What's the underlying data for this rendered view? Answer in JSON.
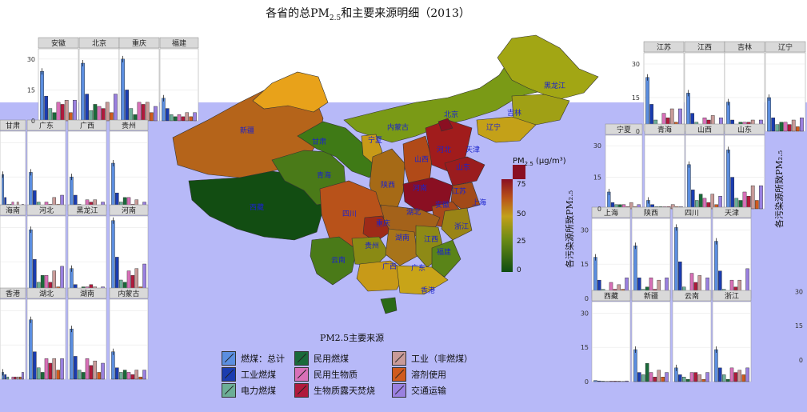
{
  "title": {
    "main": "各省的总PM",
    "sub": "2.5",
    "rest": "和主要来源明细（2013）"
  },
  "legend": {
    "title": "PM2.5主要来源",
    "items": [
      {
        "label": "燃煤：总计",
        "color": "#5b8ee0"
      },
      {
        "label": "工业燃煤",
        "color": "#1a3cb0"
      },
      {
        "label": "电力燃煤",
        "color": "#6cae96"
      },
      {
        "label": "民用燃煤",
        "color": "#1a6a3a"
      },
      {
        "label": "民用生物质",
        "color": "#d870b8"
      },
      {
        "label": "生物质露天焚烧",
        "color": "#b01a3c"
      },
      {
        "label": "工业（非燃煤）",
        "color": "#c89a98"
      },
      {
        "label": "溶剂使用",
        "color": "#d05a1e"
      },
      {
        "label": "交通运输",
        "color": "#9a80e0"
      }
    ]
  },
  "pm_legend": {
    "title": "PM",
    "sub": "2.5",
    "unit": "(μg/m³)",
    "ticks": [
      "75",
      "50",
      "25",
      "0"
    ]
  },
  "ylabel_a": "各污染源所致PM₂.₅",
  "ylabel_b": "各污染源所致PM₂.₅",
  "map_labels": [
    {
      "name": "新疆"
    },
    {
      "name": "西藏"
    },
    {
      "name": "青海"
    },
    {
      "name": "甘肃"
    },
    {
      "name": "内蒙古"
    },
    {
      "name": "黑龙江"
    },
    {
      "name": "吉林"
    },
    {
      "name": "辽宁"
    },
    {
      "name": "北京"
    },
    {
      "name": "天津"
    },
    {
      "name": "河北"
    },
    {
      "name": "山西"
    },
    {
      "name": "山东"
    },
    {
      "name": "宁夏"
    },
    {
      "name": "陕西"
    },
    {
      "name": "河南"
    },
    {
      "name": "江苏"
    },
    {
      "name": "上海"
    },
    {
      "name": "安徽"
    },
    {
      "name": "湖北"
    },
    {
      "name": "四川"
    },
    {
      "name": "重庆"
    },
    {
      "name": "浙江"
    },
    {
      "name": "湖南"
    },
    {
      "name": "江西"
    },
    {
      "name": "贵州"
    },
    {
      "name": "云南"
    },
    {
      "name": "福建"
    },
    {
      "name": "广西"
    },
    {
      "name": "广东"
    },
    {
      "name": "香港"
    }
  ],
  "chart_data": {
    "type": "bar",
    "title": "各省的总PM2.5和主要来源明细（2013）",
    "ylabel": "各污染源所致PM2.5",
    "ylim": [
      0,
      35
    ],
    "yticks": [
      0,
      15,
      30
    ],
    "series_names": [
      "燃煤：总计",
      "工业燃煤",
      "电力燃煤",
      "民用燃煤",
      "民用生物质",
      "生物质露天焚烧",
      "工业（非燃煤）",
      "溶剂使用",
      "交通运输"
    ],
    "panels": [
      {
        "province": "安徽",
        "values": [
          24,
          12,
          6,
          4,
          9,
          8,
          10,
          4,
          10
        ]
      },
      {
        "province": "北京",
        "values": [
          28,
          13,
          5,
          8,
          7,
          6,
          9,
          4,
          13
        ]
      },
      {
        "province": "重庆",
        "values": [
          30,
          15,
          6,
          3,
          9,
          8,
          9,
          4,
          7
        ]
      },
      {
        "province": "福建",
        "values": [
          11,
          6,
          3,
          2,
          3,
          2,
          4,
          2,
          4
        ]
      },
      {
        "province": "甘肃",
        "values": [
          16,
          6,
          3,
          3,
          4,
          2,
          4,
          2,
          3
        ]
      },
      {
        "province": "广东",
        "values": [
          17,
          9,
          4,
          2,
          4,
          3,
          6,
          3,
          7
        ]
      },
      {
        "province": "广西",
        "values": [
          15,
          7,
          3,
          2,
          5,
          4,
          5,
          2,
          4
        ]
      },
      {
        "province": "贵州",
        "values": [
          21,
          8,
          4,
          6,
          6,
          3,
          5,
          2,
          4
        ]
      },
      {
        "province": "海南",
        "values": [
          2,
          1,
          1,
          0,
          1,
          1,
          1,
          0,
          2
        ]
      },
      {
        "province": "河北",
        "values": [
          29,
          16,
          6,
          9,
          9,
          6,
          11,
          4,
          13
        ]
      },
      {
        "province": "黑龙江",
        "values": [
          12,
          5,
          3,
          4,
          4,
          5,
          4,
          2,
          4
        ]
      },
      {
        "province": "河南",
        "values": [
          33,
          17,
          7,
          6,
          11,
          9,
          12,
          4,
          14
        ]
      },
      {
        "province": "香港",
        "values": [
          3,
          2,
          1,
          0,
          1,
          1,
          1,
          1,
          3
        ]
      },
      {
        "province": "湖北",
        "values": [
          26,
          12,
          5,
          3,
          9,
          7,
          9,
          4,
          9
        ]
      },
      {
        "province": "湖南",
        "values": [
          22,
          10,
          4,
          3,
          9,
          6,
          8,
          3,
          7
        ]
      },
      {
        "province": "内蒙古",
        "values": [
          12,
          5,
          3,
          4,
          3,
          2,
          4,
          1,
          4
        ]
      },
      {
        "province": "江苏",
        "values": [
          24,
          12,
          5,
          2,
          8,
          6,
          10,
          4,
          10
        ]
      },
      {
        "province": "江西",
        "values": [
          17,
          8,
          4,
          2,
          6,
          5,
          7,
          3,
          6
        ]
      },
      {
        "province": "吉林",
        "values": [
          13,
          5,
          3,
          4,
          4,
          4,
          5,
          2,
          5
        ]
      },
      {
        "province": "辽宁",
        "values": [
          15,
          6,
          3,
          4,
          4,
          3,
          5,
          2,
          6
        ]
      },
      {
        "province": "宁夏",
        "values": [
          8,
          3,
          2,
          2,
          2,
          1,
          3,
          1,
          2
        ]
      },
      {
        "province": "青海",
        "values": [
          4,
          2,
          1,
          1,
          1,
          1,
          2,
          1,
          1
        ]
      },
      {
        "province": "山西",
        "values": [
          21,
          9,
          4,
          7,
          5,
          3,
          7,
          2,
          6
        ]
      },
      {
        "province": "山东",
        "values": [
          28,
          15,
          5,
          4,
          8,
          6,
          11,
          4,
          11
        ]
      },
      {
        "province": "上海",
        "values": [
          18,
          8,
          4,
          1,
          7,
          4,
          6,
          4,
          9
        ]
      },
      {
        "province": "陕西",
        "values": [
          23,
          9,
          4,
          5,
          9,
          4,
          8,
          3,
          9
        ]
      },
      {
        "province": "四川",
        "values": [
          31,
          16,
          5,
          3,
          11,
          7,
          10,
          3,
          9
        ]
      },
      {
        "province": "天津",
        "values": [
          25,
          12,
          4,
          3,
          8,
          5,
          8,
          3,
          13
        ]
      },
      {
        "province": "西藏",
        "values": [
          0.5,
          0.3,
          0.2,
          0.1,
          0.2,
          0.2,
          0.2,
          0.1,
          0.3
        ]
      },
      {
        "province": "新疆",
        "values": [
          14,
          4,
          3,
          8,
          4,
          2,
          5,
          2,
          4
        ]
      },
      {
        "province": "云南",
        "values": [
          6,
          3,
          2,
          1,
          4,
          4,
          3,
          1,
          4
        ]
      },
      {
        "province": "浙江",
        "values": [
          14,
          6,
          3,
          1,
          6,
          4,
          5,
          3,
          6
        ]
      }
    ]
  }
}
